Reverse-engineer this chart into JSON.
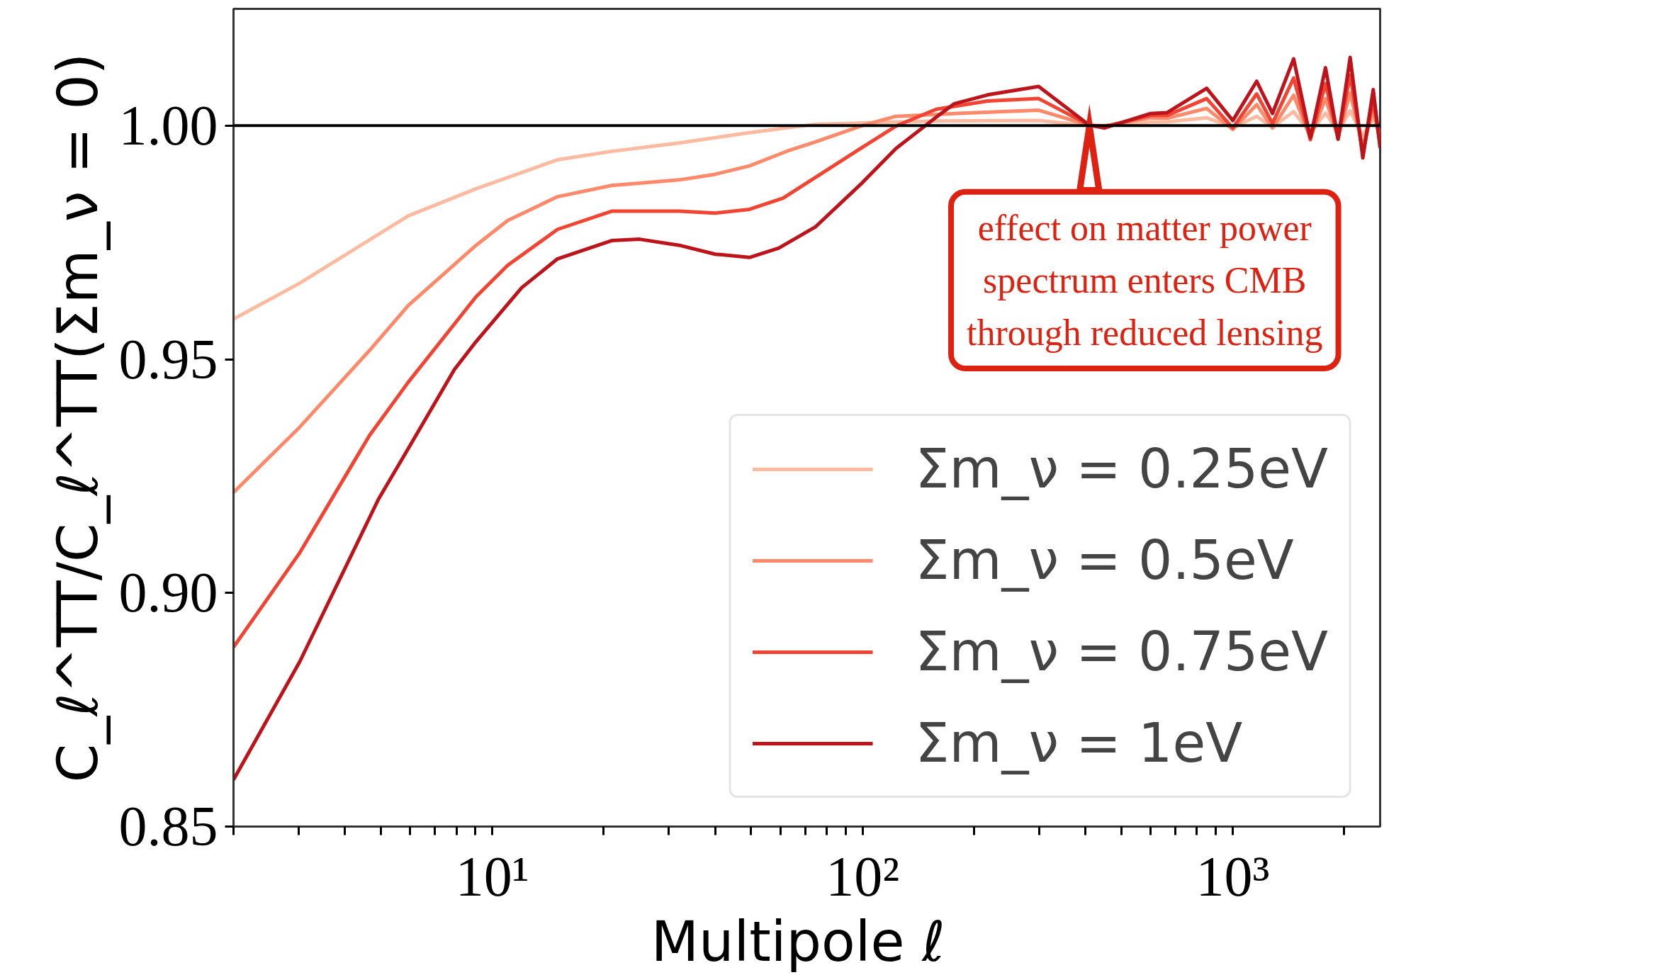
{
  "chart_data": {
    "type": "line",
    "xlabel": "Multipole  ℓ",
    "ylabel": "C_ℓ^TT/C_ℓ^TT(Σm_ν = 0)",
    "log": "x",
    "xlim": [
      2,
      2500
    ],
    "ylim": [
      0.85,
      1.025
    ],
    "xticks": [
      {
        "value": 2,
        "label": null
      },
      {
        "value": 3,
        "label": null
      },
      {
        "value": 4,
        "label": null
      },
      {
        "value": 5,
        "label": null
      },
      {
        "value": 6,
        "label": null
      },
      {
        "value": 7,
        "label": null
      },
      {
        "value": 8,
        "label": null
      },
      {
        "value": 9,
        "label": null
      },
      {
        "value": 10,
        "label": "10¹"
      },
      {
        "value": 20,
        "label": null
      },
      {
        "value": 30,
        "label": null
      },
      {
        "value": 40,
        "label": null
      },
      {
        "value": 50,
        "label": null
      },
      {
        "value": 60,
        "label": null
      },
      {
        "value": 70,
        "label": null
      },
      {
        "value": 80,
        "label": null
      },
      {
        "value": 90,
        "label": null
      },
      {
        "value": 100,
        "label": "10²"
      },
      {
        "value": 200,
        "label": null
      },
      {
        "value": 300,
        "label": null
      },
      {
        "value": 400,
        "label": null
      },
      {
        "value": 500,
        "label": null
      },
      {
        "value": 600,
        "label": null
      },
      {
        "value": 700,
        "label": null
      },
      {
        "value": 800,
        "label": null
      },
      {
        "value": 900,
        "label": null
      },
      {
        "value": 1000,
        "label": "10³"
      },
      {
        "value": 2000,
        "label": null
      }
    ],
    "yticks": [
      {
        "value": 0.85,
        "label": "0.85"
      },
      {
        "value": 0.9,
        "label": "0.90"
      },
      {
        "value": 0.95,
        "label": "0.95"
      },
      {
        "value": 1.0,
        "label": "1.00"
      }
    ],
    "grid": false,
    "legend": "bottom right",
    "line_style": "solid",
    "ref_lines": [
      {
        "axis": "y",
        "value": 1.0,
        "label": null,
        "color": "#000000"
      }
    ],
    "annotations": [
      {
        "text": "effect on matter power\nspectrum enters CMB\nthrough reduced lensing",
        "x": 410,
        "y": 1.0
      }
    ],
    "series": [
      {
        "name": "Σm_ν = 0.25eV",
        "color": "#fcbba1",
        "x": [
          2,
          3.02,
          5.93,
          9.04,
          15,
          21,
          32,
          49.5,
          74.5,
          123,
          158,
          299,
          410,
          450,
          600,
          665,
          850,
          1000,
          1160,
          1280,
          1460,
          1620,
          1780,
          1925,
          2075,
          2245,
          2395,
          2500
        ],
        "values": [
          0.9586,
          0.9663,
          0.9807,
          0.9865,
          0.9927,
          0.9945,
          0.9963,
          0.9985,
          1.0003,
          1.0008,
          1.001,
          1.0011,
          1.0,
          1.0,
          1.0008,
          1.0008,
          1.0017,
          0.9996,
          1.002,
          0.9997,
          1.003,
          0.9985,
          1.0027,
          0.9987,
          1.0032,
          0.9978,
          1.0016,
          0.9985
        ]
      },
      {
        "name": "Σm_ν = 0.5eV",
        "color": "#fc8a6a",
        "x": [
          2,
          3.02,
          4.66,
          5.93,
          9.04,
          11,
          15,
          21,
          32,
          40,
          49.5,
          62.8,
          74.5,
          98.7,
          123,
          177,
          299,
          410,
          450,
          600,
          665,
          850,
          1000,
          1160,
          1280,
          1460,
          1620,
          1780,
          1925,
          2075,
          2245,
          2395,
          2500
        ],
        "values": [
          0.9215,
          0.9355,
          0.9519,
          0.9615,
          0.9744,
          0.9797,
          0.9848,
          0.9872,
          0.9884,
          0.9896,
          0.9914,
          0.9946,
          0.9965,
          0.9999,
          1.002,
          1.0026,
          1.0033,
          1.0001,
          0.9999,
          1.0017,
          1.0016,
          1.0037,
          0.9992,
          1.0045,
          0.9995,
          1.0065,
          0.9975,
          1.0058,
          0.9975,
          1.007,
          0.9955,
          1.0035,
          0.997
        ]
      },
      {
        "name": "Σm_ν = 0.75eV",
        "color": "#f14432",
        "x": [
          2,
          3.02,
          3.78,
          4.66,
          5.93,
          9.04,
          11,
          15,
          21,
          25,
          32,
          40,
          49.5,
          61,
          74.5,
          98.7,
          123,
          158,
          218,
          299,
          410,
          450,
          600,
          665,
          850,
          1000,
          1160,
          1280,
          1460,
          1620,
          1780,
          1925,
          2075,
          2245,
          2395,
          2500
        ],
        "values": [
          0.8884,
          0.9086,
          0.9216,
          0.9337,
          0.9451,
          0.9634,
          0.9701,
          0.9778,
          0.9817,
          0.9817,
          0.9817,
          0.9813,
          0.9821,
          0.9845,
          0.9889,
          0.9951,
          0.9999,
          1.0035,
          1.0053,
          1.0058,
          1.0001,
          0.9998,
          1.0022,
          1.0022,
          1.0058,
          0.9995,
          1.0068,
          1.0005,
          1.0102,
          0.997,
          1.009,
          0.9972,
          1.0108,
          0.994,
          1.0055,
          0.996
        ]
      },
      {
        "name": "Σm_ν = 1eV",
        "color": "#bc141a",
        "x": [
          2,
          3.02,
          4.93,
          6,
          7.9,
          9.04,
          12,
          15,
          21,
          25,
          32,
          40,
          49.5,
          59.4,
          74.5,
          98.7,
          123,
          158,
          177,
          218,
          299,
          410,
          450,
          600,
          665,
          850,
          1000,
          1160,
          1280,
          1460,
          1620,
          1780,
          1925,
          2075,
          2245,
          2395,
          2500
        ],
        "values": [
          0.86,
          0.8853,
          0.9201,
          0.9316,
          0.9478,
          0.9538,
          0.9653,
          0.9715,
          0.9754,
          0.9757,
          0.9744,
          0.9725,
          0.9718,
          0.9738,
          0.9783,
          0.9874,
          0.9951,
          1.0018,
          1.0047,
          1.0066,
          1.0084,
          1.0001,
          0.9995,
          1.0026,
          1.0028,
          1.008,
          1.0011,
          1.0095,
          1.0026,
          1.0143,
          0.9974,
          1.0124,
          0.9971,
          1.0146,
          0.9931,
          1.0077,
          0.9952
        ]
      }
    ]
  }
}
